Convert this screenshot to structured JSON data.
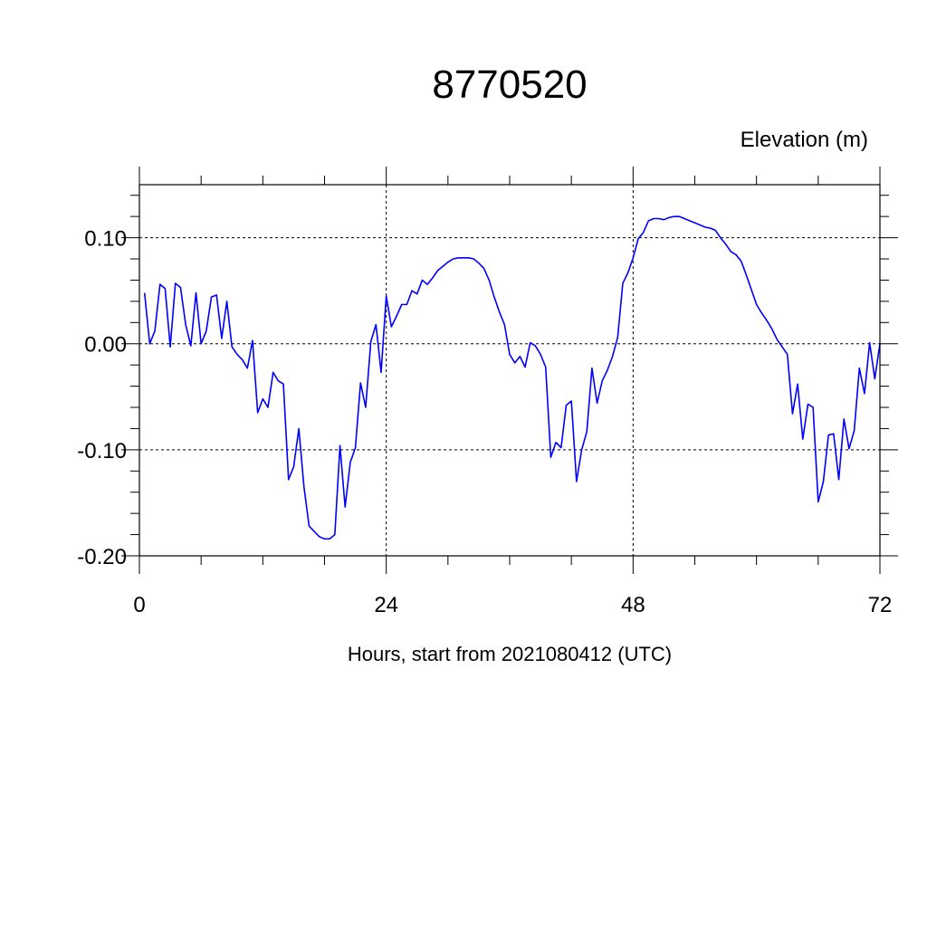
{
  "chart_data": {
    "type": "line",
    "title": "8770520",
    "ylabel": "Elevation (m)",
    "xlabel": "Hours, start from 2021080412 (UTC)",
    "xlim": [
      0,
      72
    ],
    "ylim": [
      -0.2,
      0.15
    ],
    "xticks": [
      0,
      24,
      48,
      72
    ],
    "xtick_labels": [
      "0",
      "24",
      "48",
      "72"
    ],
    "yticks": [
      -0.2,
      -0.1,
      0.0,
      0.1
    ],
    "ytick_labels": [
      "-0.20",
      "-0.10",
      "0.00",
      "0.10"
    ],
    "grid": "dashed",
    "line_color": "#0000ff",
    "series": [
      {
        "x": [
          0.5,
          1,
          1.5,
          2,
          2.5,
          3,
          3.5,
          4,
          4.5,
          5,
          5.5,
          6,
          6.5,
          7,
          7.5,
          8,
          8.5,
          9,
          9.5,
          10,
          10.5,
          11,
          11.5,
          12,
          12.5,
          13,
          13.5,
          14,
          14.5,
          15,
          15.5,
          16,
          16.5,
          17,
          17.5,
          18,
          18.5,
          19,
          19.5,
          20,
          20.5,
          21,
          21.5,
          22,
          22.5,
          23,
          23.5,
          24,
          24.5,
          25,
          25.5,
          26,
          26.5,
          27,
          27.5,
          28,
          28.5,
          29,
          29.5,
          30,
          30.5,
          31,
          31.5,
          32,
          32.5,
          33,
          33.5,
          34,
          34.5,
          35,
          35.5,
          36,
          36.5,
          37,
          37.5,
          38,
          38.5,
          39,
          39.5,
          40,
          40.5,
          41,
          41.5,
          42,
          42.5,
          43,
          43.5,
          44,
          44.5,
          45,
          45.5,
          46,
          46.5,
          47,
          47.5,
          48,
          48.5,
          49,
          49.5,
          50,
          50.5,
          51,
          51.5,
          52,
          52.5,
          53,
          53.5,
          54,
          54.5,
          55,
          55.5,
          56,
          56.5,
          57,
          57.5,
          58,
          58.5,
          59,
          59.5,
          60,
          60.5,
          61,
          61.5,
          62,
          62.5,
          63,
          63.5,
          64,
          64.5,
          65,
          65.5,
          66,
          66.5,
          67,
          67.5,
          68,
          68.5,
          69,
          69.5,
          70,
          70.5,
          71,
          71.5,
          72
        ],
        "y": [
          0.048,
          0.0,
          0.012,
          0.056,
          0.052,
          -0.003,
          0.057,
          0.053,
          0.018,
          -0.002,
          0.048,
          0.0,
          0.012,
          0.044,
          0.046,
          0.005,
          0.04,
          -0.003,
          -0.01,
          -0.015,
          -0.023,
          0.003,
          -0.065,
          -0.052,
          -0.06,
          -0.027,
          -0.035,
          -0.038,
          -0.128,
          -0.116,
          -0.08,
          -0.135,
          -0.172,
          -0.177,
          -0.182,
          -0.184,
          -0.184,
          -0.18,
          -0.096,
          -0.154,
          -0.112,
          -0.098,
          -0.037,
          -0.06,
          0.002,
          0.018,
          -0.027,
          0.045,
          0.016,
          0.026,
          0.037,
          0.037,
          0.05,
          0.047,
          0.06,
          0.056,
          0.062,
          0.069,
          0.073,
          0.077,
          0.08,
          0.081,
          0.081,
          0.081,
          0.08,
          0.076,
          0.071,
          0.06,
          0.044,
          0.03,
          0.018,
          -0.01,
          -0.018,
          -0.012,
          -0.022,
          0.001,
          -0.002,
          -0.01,
          -0.022,
          -0.107,
          -0.093,
          -0.098,
          -0.058,
          -0.054,
          -0.13,
          -0.1,
          -0.083,
          -0.023,
          -0.056,
          -0.035,
          -0.025,
          -0.012,
          0.006,
          0.057,
          0.067,
          0.081,
          0.099,
          0.105,
          0.116,
          0.118,
          0.118,
          0.117,
          0.119,
          0.12,
          0.12,
          0.118,
          0.116,
          0.114,
          0.112,
          0.11,
          0.109,
          0.107,
          0.1,
          0.094,
          0.087,
          0.084,
          0.078,
          0.065,
          0.051,
          0.037,
          0.029,
          0.022,
          0.014,
          0.004,
          -0.003,
          -0.01,
          -0.066,
          -0.038,
          -0.09,
          -0.057,
          -0.06,
          -0.149,
          -0.13,
          -0.086,
          -0.085,
          -0.128,
          -0.071,
          -0.099,
          -0.082,
          -0.023,
          -0.047,
          0.001,
          -0.033,
          0.0
        ]
      }
    ]
  }
}
